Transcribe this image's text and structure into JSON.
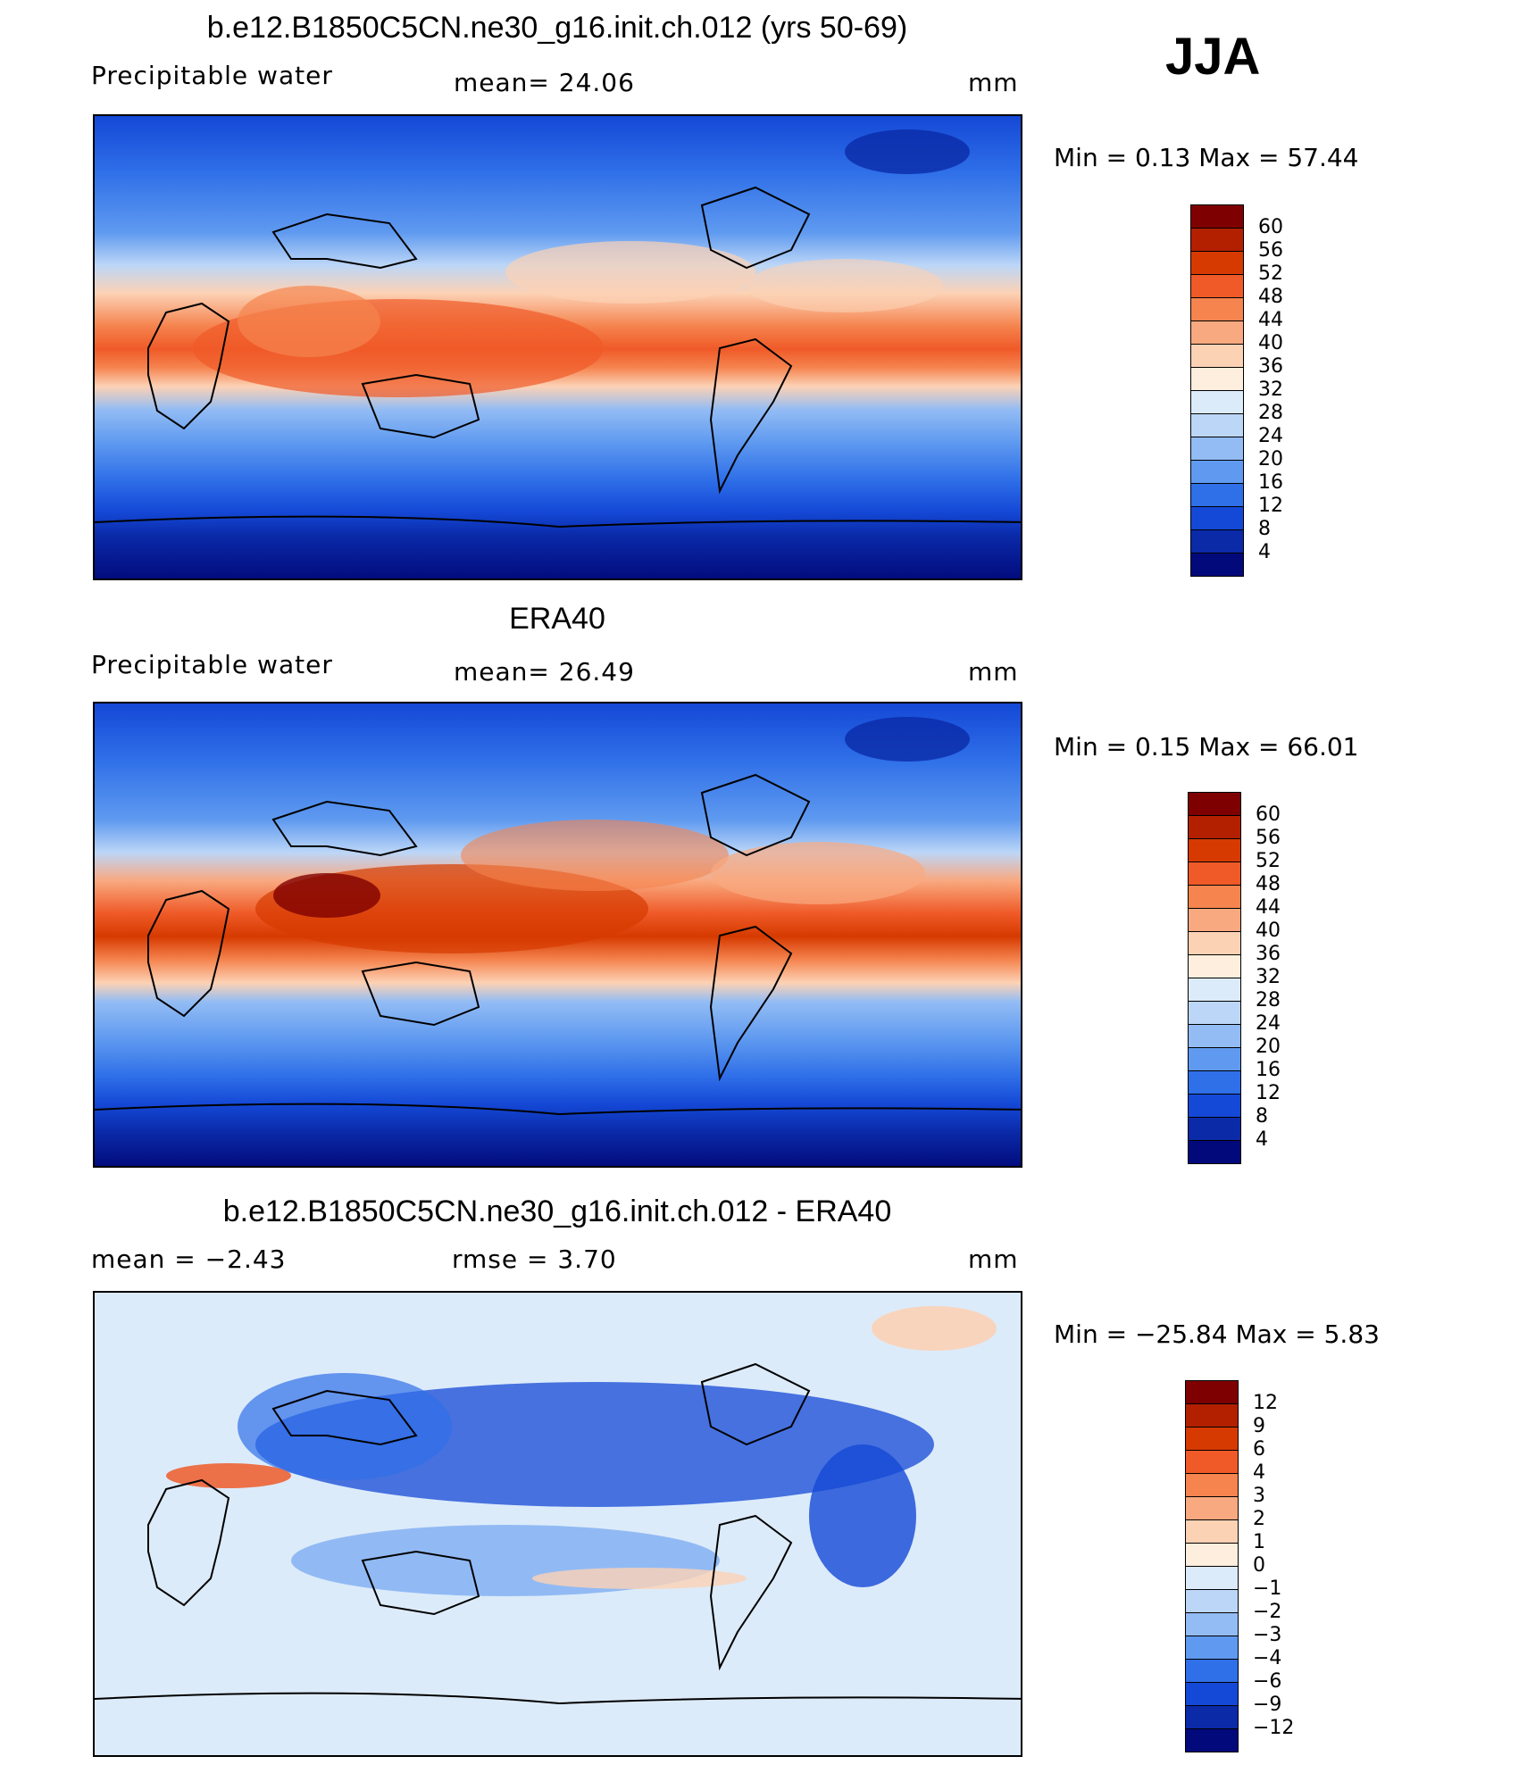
{
  "season": "JJA",
  "panels": [
    {
      "title": "b.e12.B1850C5CN.ne30_g16.init.ch.012 (yrs 50-69)",
      "left_text": "Precipitable  water",
      "middle_text": "mean=   24.06",
      "units": "mm",
      "minmax": "Min  =      0.13  Max  =    57.44",
      "legend_labels": [
        "60",
        "56",
        "52",
        "48",
        "44",
        "40",
        "36",
        "32",
        "28",
        "24",
        "20",
        "16",
        "12",
        "8",
        "4"
      ]
    },
    {
      "title": "ERA40",
      "left_text": "Precipitable  water",
      "middle_text": "mean=   26.49",
      "units": "mm",
      "minmax": "Min  =      0.15  Max  =    66.01",
      "legend_labels": [
        "60",
        "56",
        "52",
        "48",
        "44",
        "40",
        "36",
        "32",
        "28",
        "24",
        "20",
        "16",
        "12",
        "8",
        "4"
      ]
    },
    {
      "title": "b.e12.B1850C5CN.ne30_g16.init.ch.012 - ERA40",
      "left_text": "mean  =    −2.43",
      "middle_text": "rmse  =     3.70",
      "units": "mm",
      "minmax": "Min  =  −25.84  Max  =      5.83",
      "legend_labels": [
        "12",
        "9",
        "6",
        "4",
        "3",
        "2",
        "1",
        "0",
        "−1",
        "−2",
        "−3",
        "−4",
        "−6",
        "−9",
        "−12"
      ]
    }
  ],
  "colors": {
    "levels16": [
      "#7f0000",
      "#b22000",
      "#d63a00",
      "#ef5a28",
      "#f5844f",
      "#f9a980",
      "#fcd2b5",
      "#fdeedd",
      "#dcebfa",
      "#bcd6f7",
      "#93bcf4",
      "#5f9af0",
      "#2f6fe8",
      "#1448d6",
      "#0a2aa8",
      "#02097a"
    ],
    "levels16_diff": [
      "#7f0000",
      "#b22000",
      "#d63a00",
      "#ef5a28",
      "#f5844f",
      "#f9a980",
      "#fcd2b5",
      "#fdeedd",
      "#dcebfa",
      "#bcd6f7",
      "#93bcf4",
      "#5f9af0",
      "#2f6fe8",
      "#1448d6",
      "#0a2aa8",
      "#02097a"
    ]
  }
}
